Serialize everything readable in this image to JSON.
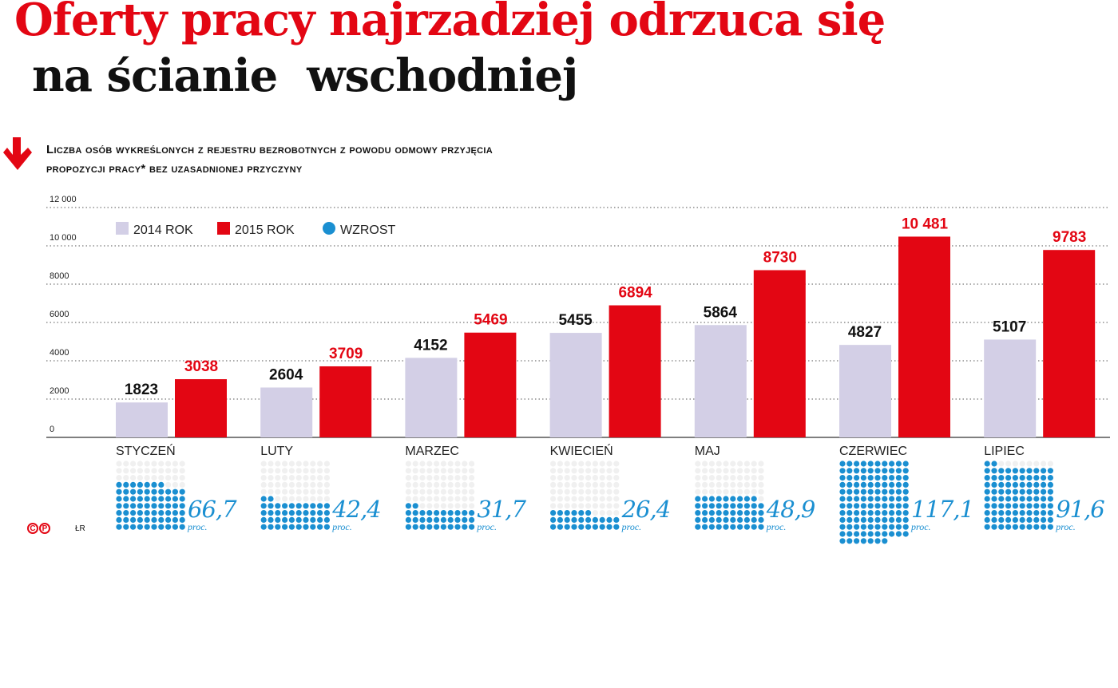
{
  "title_line1": "Oferty pracy najrzadziej odrzuca się",
  "title_line2": "na ścianie  wschodniej",
  "subtitle_line1": "Liczba osób wykreślonych z rejestru bezrobotnych z powodu odmowy przyjęcia",
  "subtitle_line2": "propozycji pracy* bez uzasadnionej przyczyny",
  "footer": {
    "logo": "©P",
    "author": "ŁR"
  },
  "colors": {
    "y2014": "#d3cfe6",
    "y2015": "#e30613",
    "growth": "#1a8fd1",
    "empty_dot": "#f0f0f0"
  },
  "chart_data": {
    "type": "bar",
    "title": "Liczba osób wykreślonych z rejestru bezrobotnych z powodu odmowy przyjęcia propozycji pracy* bez uzasadnionej przyczyny",
    "categories": [
      "STYCZEŃ",
      "LUTY",
      "MARZEC",
      "KWIECIEŃ",
      "MAJ",
      "CZERWIEC",
      "LIPIEC"
    ],
    "series": [
      {
        "name": "2014 ROK",
        "values": [
          1823,
          2604,
          4152,
          5455,
          5864,
          4827,
          5107
        ],
        "labels": [
          "1823",
          "2604",
          "4152",
          "5455",
          "5864",
          "4827",
          "5107"
        ]
      },
      {
        "name": "2015 ROK",
        "values": [
          3038,
          3709,
          5469,
          6894,
          8730,
          10481,
          9783
        ],
        "labels": [
          "3038",
          "3709",
          "5469",
          "6894",
          "8730",
          "10 481",
          "9783"
        ]
      }
    ],
    "growth": {
      "name": "WZROST",
      "values": [
        66.7,
        42.4,
        31.7,
        26.4,
        48.9,
        117.1,
        91.6
      ],
      "labels": [
        "66,7",
        "42,4",
        "31,7",
        "26,4",
        "48,9",
        "117,1",
        "91,6"
      ],
      "unit": "proc."
    },
    "yticks": [
      0,
      2000,
      4000,
      6000,
      8000,
      10000,
      12000
    ],
    "ytick_labels": [
      "0",
      "2000",
      "4000",
      "6000",
      "8000",
      "10 000",
      "12 000"
    ],
    "ylim": [
      0,
      12000
    ],
    "grid": true,
    "legend": "top-left"
  }
}
